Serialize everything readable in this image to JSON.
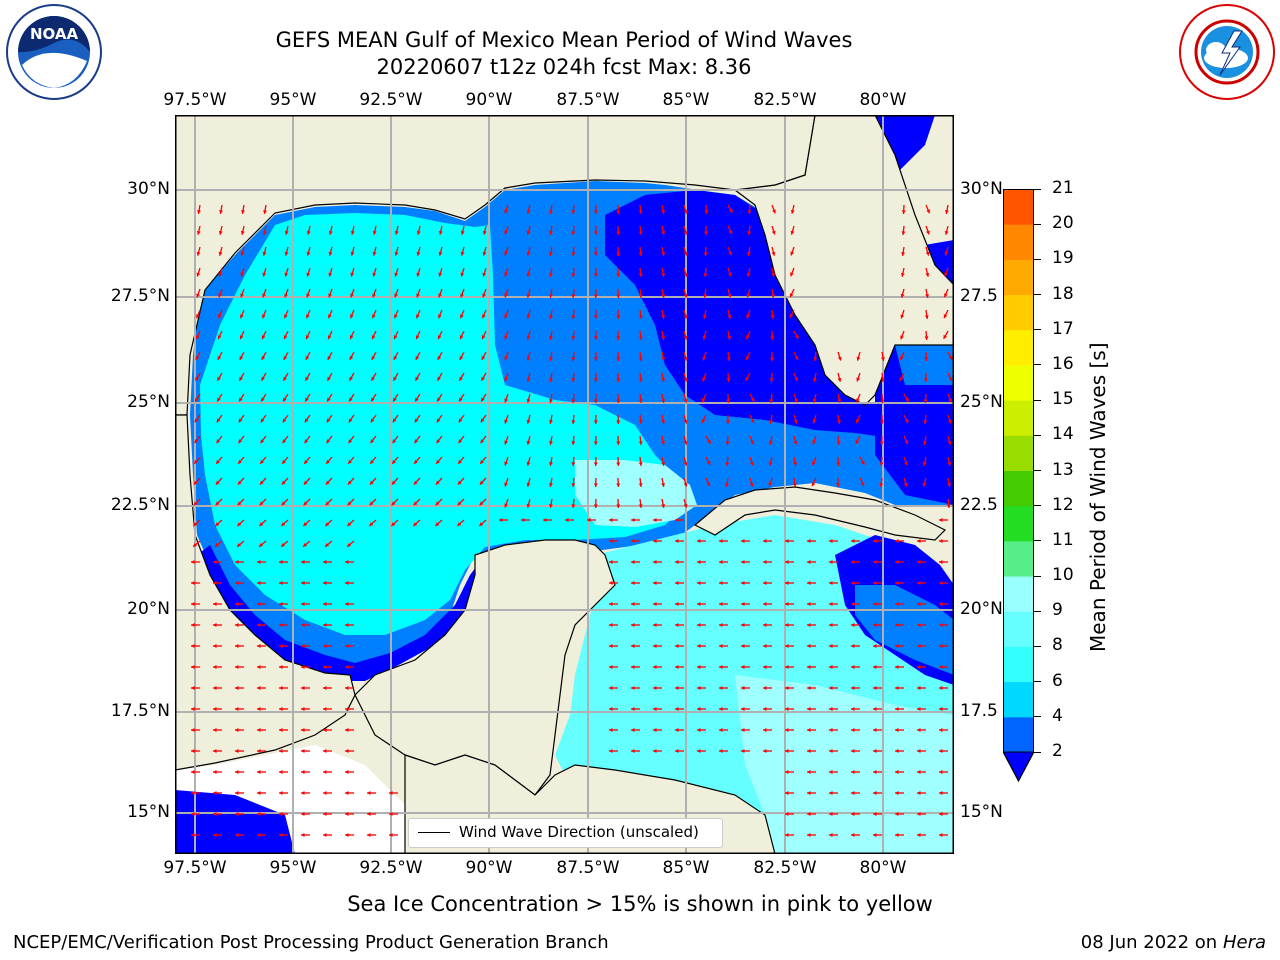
{
  "title_line1": "GEFS MEAN Gulf of Mexico Mean Period of Wind Waves",
  "title_line2": "20220607 t12z 024h fcst   Max: 8.36",
  "logos": {
    "left": "NOAA",
    "right": "NATIONAL WEATHER SERVICE"
  },
  "lon_labels": [
    "97.5°W",
    "95°W",
    "92.5°W",
    "90°W",
    "87.5°W",
    "85°W",
    "82.5°W",
    "80°W"
  ],
  "lat_labels": [
    "30°N",
    "27.5°N",
    "25°N",
    "22.5°N",
    "20°N",
    "17.5°N",
    "15°N"
  ],
  "lat_labels_right": [
    "30°N",
    "27.5",
    "25°N",
    "22.5",
    "20°N",
    "17.5",
    "15°N"
  ],
  "legend": {
    "line_label": "Wind Wave Direction (unscaled)"
  },
  "colorbar": {
    "title": "Mean Period of Wind Waves [s]",
    "ticks": [
      "2",
      "4",
      "6",
      "8",
      "9",
      "10",
      "11",
      "12",
      "13",
      "14",
      "15",
      "16",
      "17",
      "18",
      "19",
      "20",
      "21"
    ],
    "colors": [
      "#0066ff",
      "#00d8ff",
      "#33ffff",
      "#66ffff",
      "#99ffff",
      "#55ee88",
      "#22dd22",
      "#44cc00",
      "#99dd00",
      "#ccee00",
      "#eeff00",
      "#ffee00",
      "#ffcc00",
      "#ffaa00",
      "#ff8800",
      "#ff5500",
      "#ff2200",
      "#ff0000"
    ],
    "extend_color": "#0000ff"
  },
  "map_colors": {
    "land": "#efefdc",
    "period_2": "#0000ff",
    "period_4": "#0080ff",
    "period_6": "#00ffff",
    "period_8": "#66ffff",
    "period_9": "#a0ffff",
    "arrows": "#ff0000"
  },
  "sea_ice_note": "Sea Ice Concentration > 15% is shown in pink to yellow",
  "footer_left": "NCEP/EMC/Verification Post Processing Product Generation Branch",
  "footer_date": "08 Jun 2022 on",
  "footer_machine": "Hera"
}
